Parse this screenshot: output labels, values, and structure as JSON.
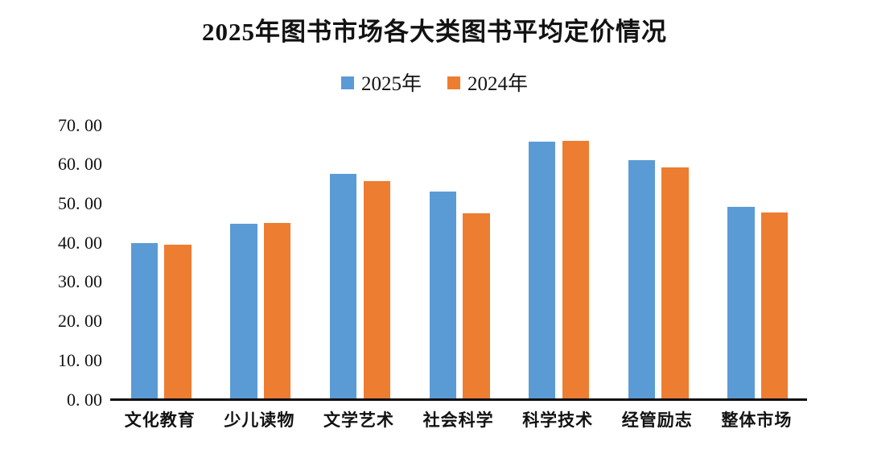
{
  "title": "2025年图书市场各大类图书平均定价情况",
  "chart_data": {
    "type": "bar",
    "title": "2025年图书市场各大类图书平均定价情况",
    "categories": [
      "文化教育",
      "少儿读物",
      "文学艺术",
      "社会科学",
      "科学技术",
      "经管励志",
      "整体市场"
    ],
    "series": [
      {
        "name": "2025年",
        "color": "#5B9BD5",
        "values": [
          40.0,
          44.9,
          57.5,
          53.1,
          65.8,
          61.1,
          49.2
        ]
      },
      {
        "name": "2024年",
        "color": "#ED7D31",
        "values": [
          39.5,
          45.0,
          55.7,
          47.5,
          66.1,
          59.2,
          47.7
        ]
      }
    ],
    "xlabel": "",
    "ylabel": "",
    "ylim": [
      0,
      70
    ],
    "ytick_step": 10,
    "ytick_labels": [
      "0. 00",
      "10. 00",
      "20. 00",
      "30. 00",
      "40. 00",
      "50. 00",
      "60. 00",
      "70. 00"
    ],
    "grid": false,
    "legend_position": "top",
    "axis_color": "#0d0d0d",
    "background_color": "#ffffff"
  }
}
